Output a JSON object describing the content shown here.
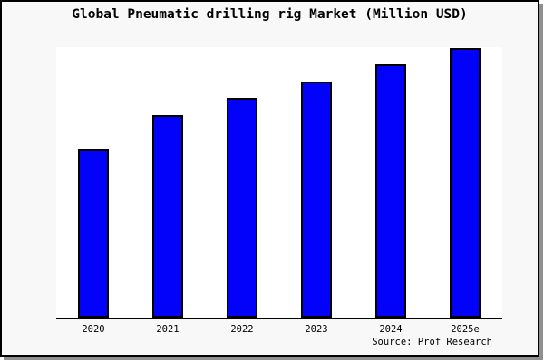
{
  "window": {
    "background": "#f8f8f8",
    "border_color": "#000000",
    "shadow_color": "#8f8f8f"
  },
  "chart_data": {
    "type": "bar",
    "title": "Global Pneumatic drilling rig Market (Million USD)",
    "categories": [
      "2020",
      "2021",
      "2022",
      "2023",
      "2024",
      "2025e"
    ],
    "values": [
      186,
      223,
      242,
      260,
      279,
      297
    ],
    "unit": "Million USD",
    "value_scale_note": "y-axis has no ticks or labels; values are relative bar heights estimated from pixels",
    "xlabel": "",
    "ylabel": "",
    "ylim": [
      0,
      298
    ],
    "grid": false,
    "legend": false,
    "bar_color": "#0202fa",
    "bar_border_color": "#000000",
    "plot_background": "#ffffff",
    "axis_color": "#000000"
  },
  "footer": {
    "source_label": "Source: Prof Research"
  }
}
